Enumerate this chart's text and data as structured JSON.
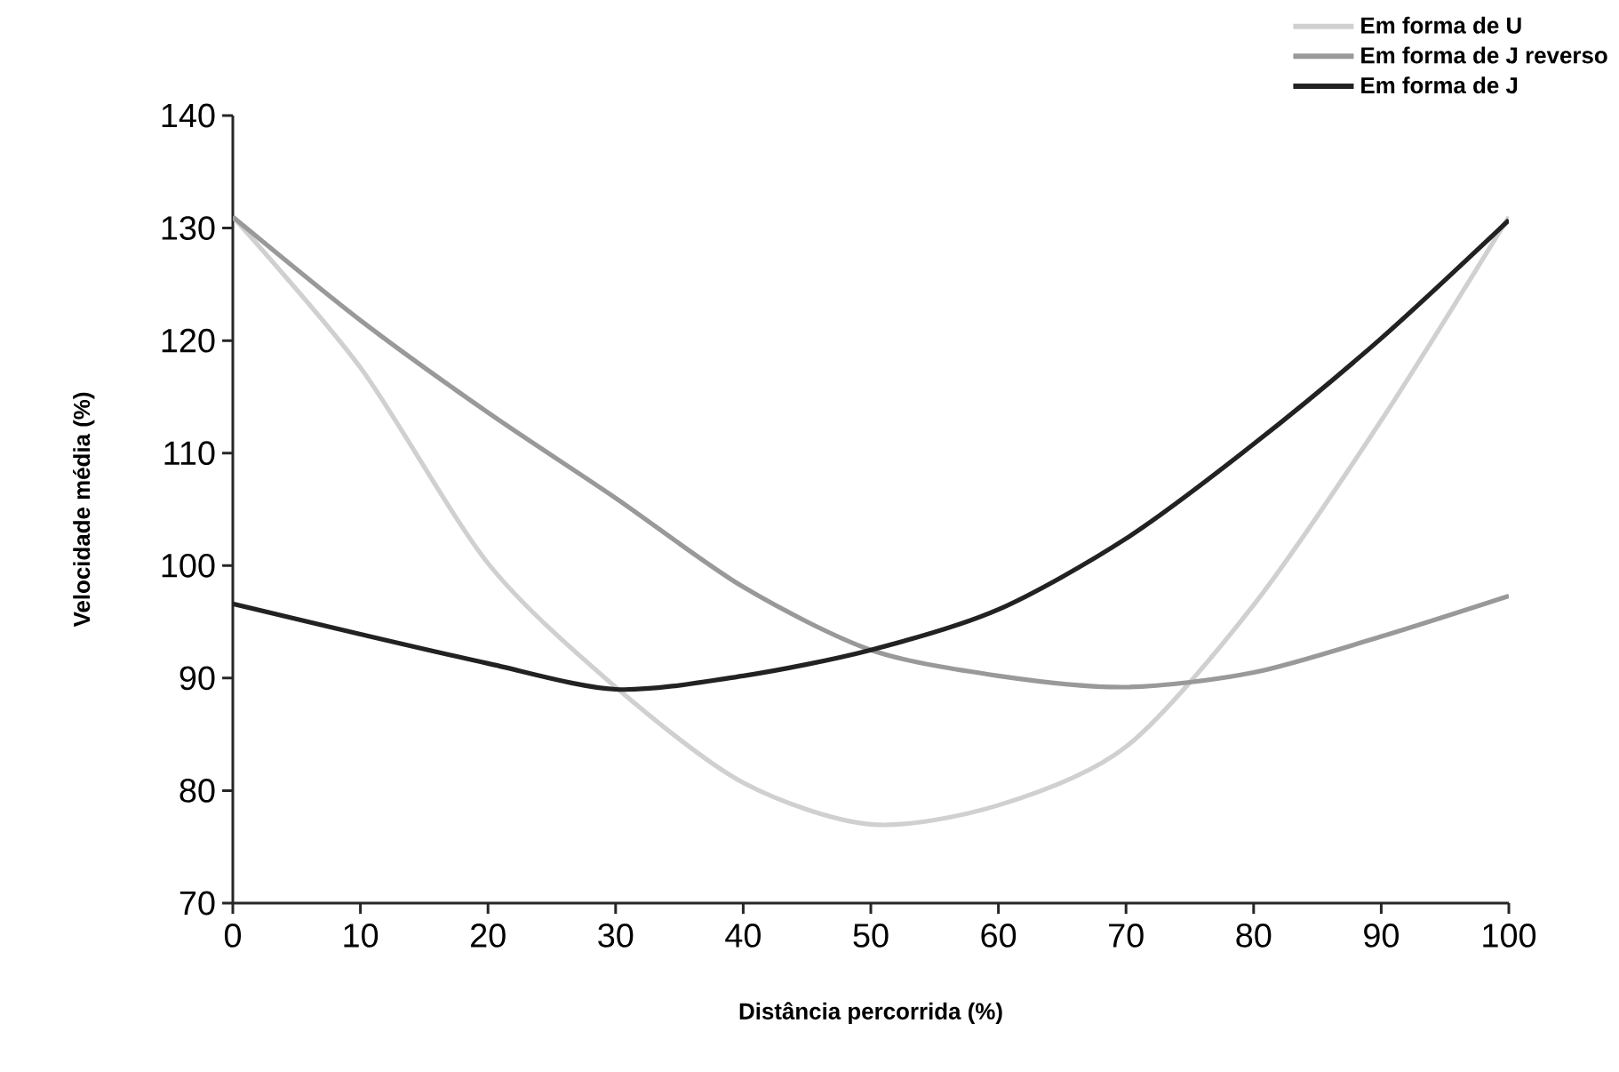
{
  "chart_data": {
    "type": "line",
    "xlabel": "Distância percorrida (%)",
    "ylabel": "Velocidade média (%)",
    "x": [
      0,
      10,
      20,
      30,
      40,
      50,
      60,
      70,
      80,
      90,
      100
    ],
    "series": [
      {
        "name": "Em forma de U",
        "color": "#d0d0d0",
        "values": [
          131,
          117.6,
          100.2,
          89.2,
          80.7,
          77,
          78.7,
          83.9,
          96.5,
          112.9,
          131
        ]
      },
      {
        "name": "Em forma de J reverso",
        "color": "#999999",
        "values": [
          131,
          121.8,
          113.6,
          106,
          98.1,
          92.5,
          90.2,
          89.2,
          90.5,
          93.7,
          97.3
        ]
      },
      {
        "name": "Em forma de J",
        "color": "#222222",
        "values": [
          96.6,
          93.9,
          91.3,
          89,
          90.2,
          92.5,
          96.1,
          102.4,
          110.8,
          120.2,
          130.7
        ]
      }
    ],
    "xlim": [
      0,
      100
    ],
    "xticks": [
      0,
      10,
      20,
      30,
      40,
      50,
      60,
      70,
      80,
      90,
      100
    ],
    "ylim": [
      70,
      140
    ],
    "yticks": [
      70,
      80,
      90,
      100,
      110,
      120,
      130,
      140
    ],
    "legend": "top right",
    "grid": false,
    "marker": "none",
    "line_style": "solid"
  }
}
